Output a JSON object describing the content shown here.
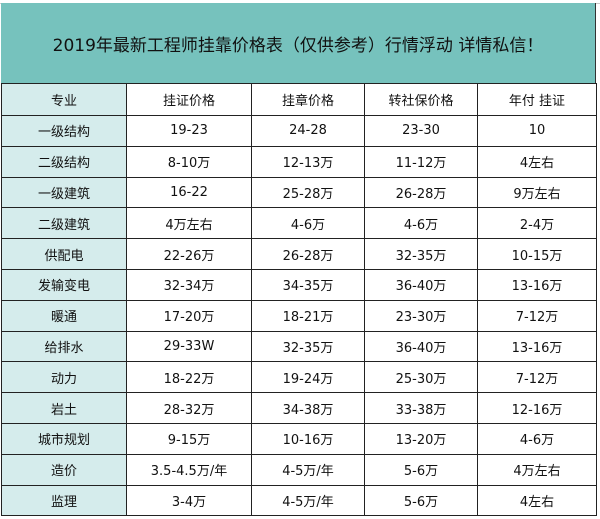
{
  "title": "2019年最新工程师挂靠价格表（仅供参考）行情浮动 详情私信！",
  "headers": [
    "专业",
    "挂证价格",
    "挂章价格",
    "转社保价格",
    "年付 挂证"
  ],
  "rows": [
    [
      "一级结构",
      "19-23",
      "24-28",
      "23-30",
      "10"
    ],
    [
      "二级结构",
      "8-10万",
      "12-13万",
      "11-12万",
      "4左右"
    ],
    [
      "一级建筑",
      "16-22",
      "25-28万",
      "26-28万",
      "9万左右"
    ],
    [
      "二级建筑",
      "4万左右",
      "4-6万",
      "4-6万",
      "2-4万"
    ],
    [
      "供配电",
      "22-26万",
      "26-28万",
      "32-35万",
      "10-15万"
    ],
    [
      "发输变电",
      "32-34万",
      "34-35万",
      "36-40万",
      "13-16万"
    ],
    [
      "暖通",
      "17-20万",
      "18-21万",
      "23-30万",
      "7-12万"
    ],
    [
      "给排水",
      "29-33W",
      "32-35万",
      "36-40万",
      "13-16万"
    ],
    [
      "动力",
      "18-22万",
      "19-24万",
      "25-30万",
      "7-12万"
    ],
    [
      "岩土",
      "28-32万",
      "34-38万",
      "33-38万",
      "12-16万"
    ],
    [
      "城市规划",
      "9-15万",
      "10-16万",
      "13-20万",
      "4-6万"
    ],
    [
      "造价",
      "3.5-4.5万/年",
      "4-5万/年",
      "5-6万",
      "4万左右"
    ],
    [
      "监理",
      "3-4万",
      "4-5万/年",
      "5-6万",
      "4左右"
    ]
  ]
}
